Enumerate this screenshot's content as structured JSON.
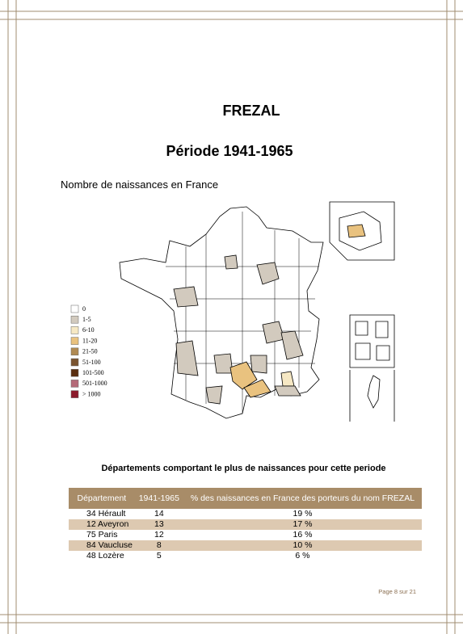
{
  "header": {
    "title": "FREZAL",
    "subtitle": "Période 1941-1965",
    "map_title": "Nombre de naissances en France"
  },
  "legend": {
    "items": [
      {
        "label": "0",
        "color": "#ffffff"
      },
      {
        "label": "1-5",
        "color": "#d2cabe"
      },
      {
        "label": "6-10",
        "color": "#f6e8c4"
      },
      {
        "label": "11-20",
        "color": "#e9c27f"
      },
      {
        "label": "21-50",
        "color": "#b08a52"
      },
      {
        "label": "51-100",
        "color": "#7a5430"
      },
      {
        "label": "101-500",
        "color": "#5a2e10"
      },
      {
        "label": "501-1000",
        "color": "#b46a78"
      },
      {
        "label": "> 1000",
        "color": "#8c1b2c"
      }
    ]
  },
  "table": {
    "caption": "Départements comportant le plus de naissances pour cette periode",
    "columns": [
      "Département",
      "1941-1965",
      "% des naissances en France des porteurs du nom FREZAL"
    ],
    "rows": [
      [
        "34 Hérault",
        14,
        "19 %"
      ],
      [
        "12 Aveyron",
        13,
        "17 %"
      ],
      [
        "75 Paris",
        12,
        "16 %"
      ],
      [
        "84 Vaucluse",
        8,
        "10 %"
      ],
      [
        "48 Lozère",
        5,
        "6 %"
      ]
    ]
  },
  "footer": {
    "page": "Page 8 sur 21"
  }
}
